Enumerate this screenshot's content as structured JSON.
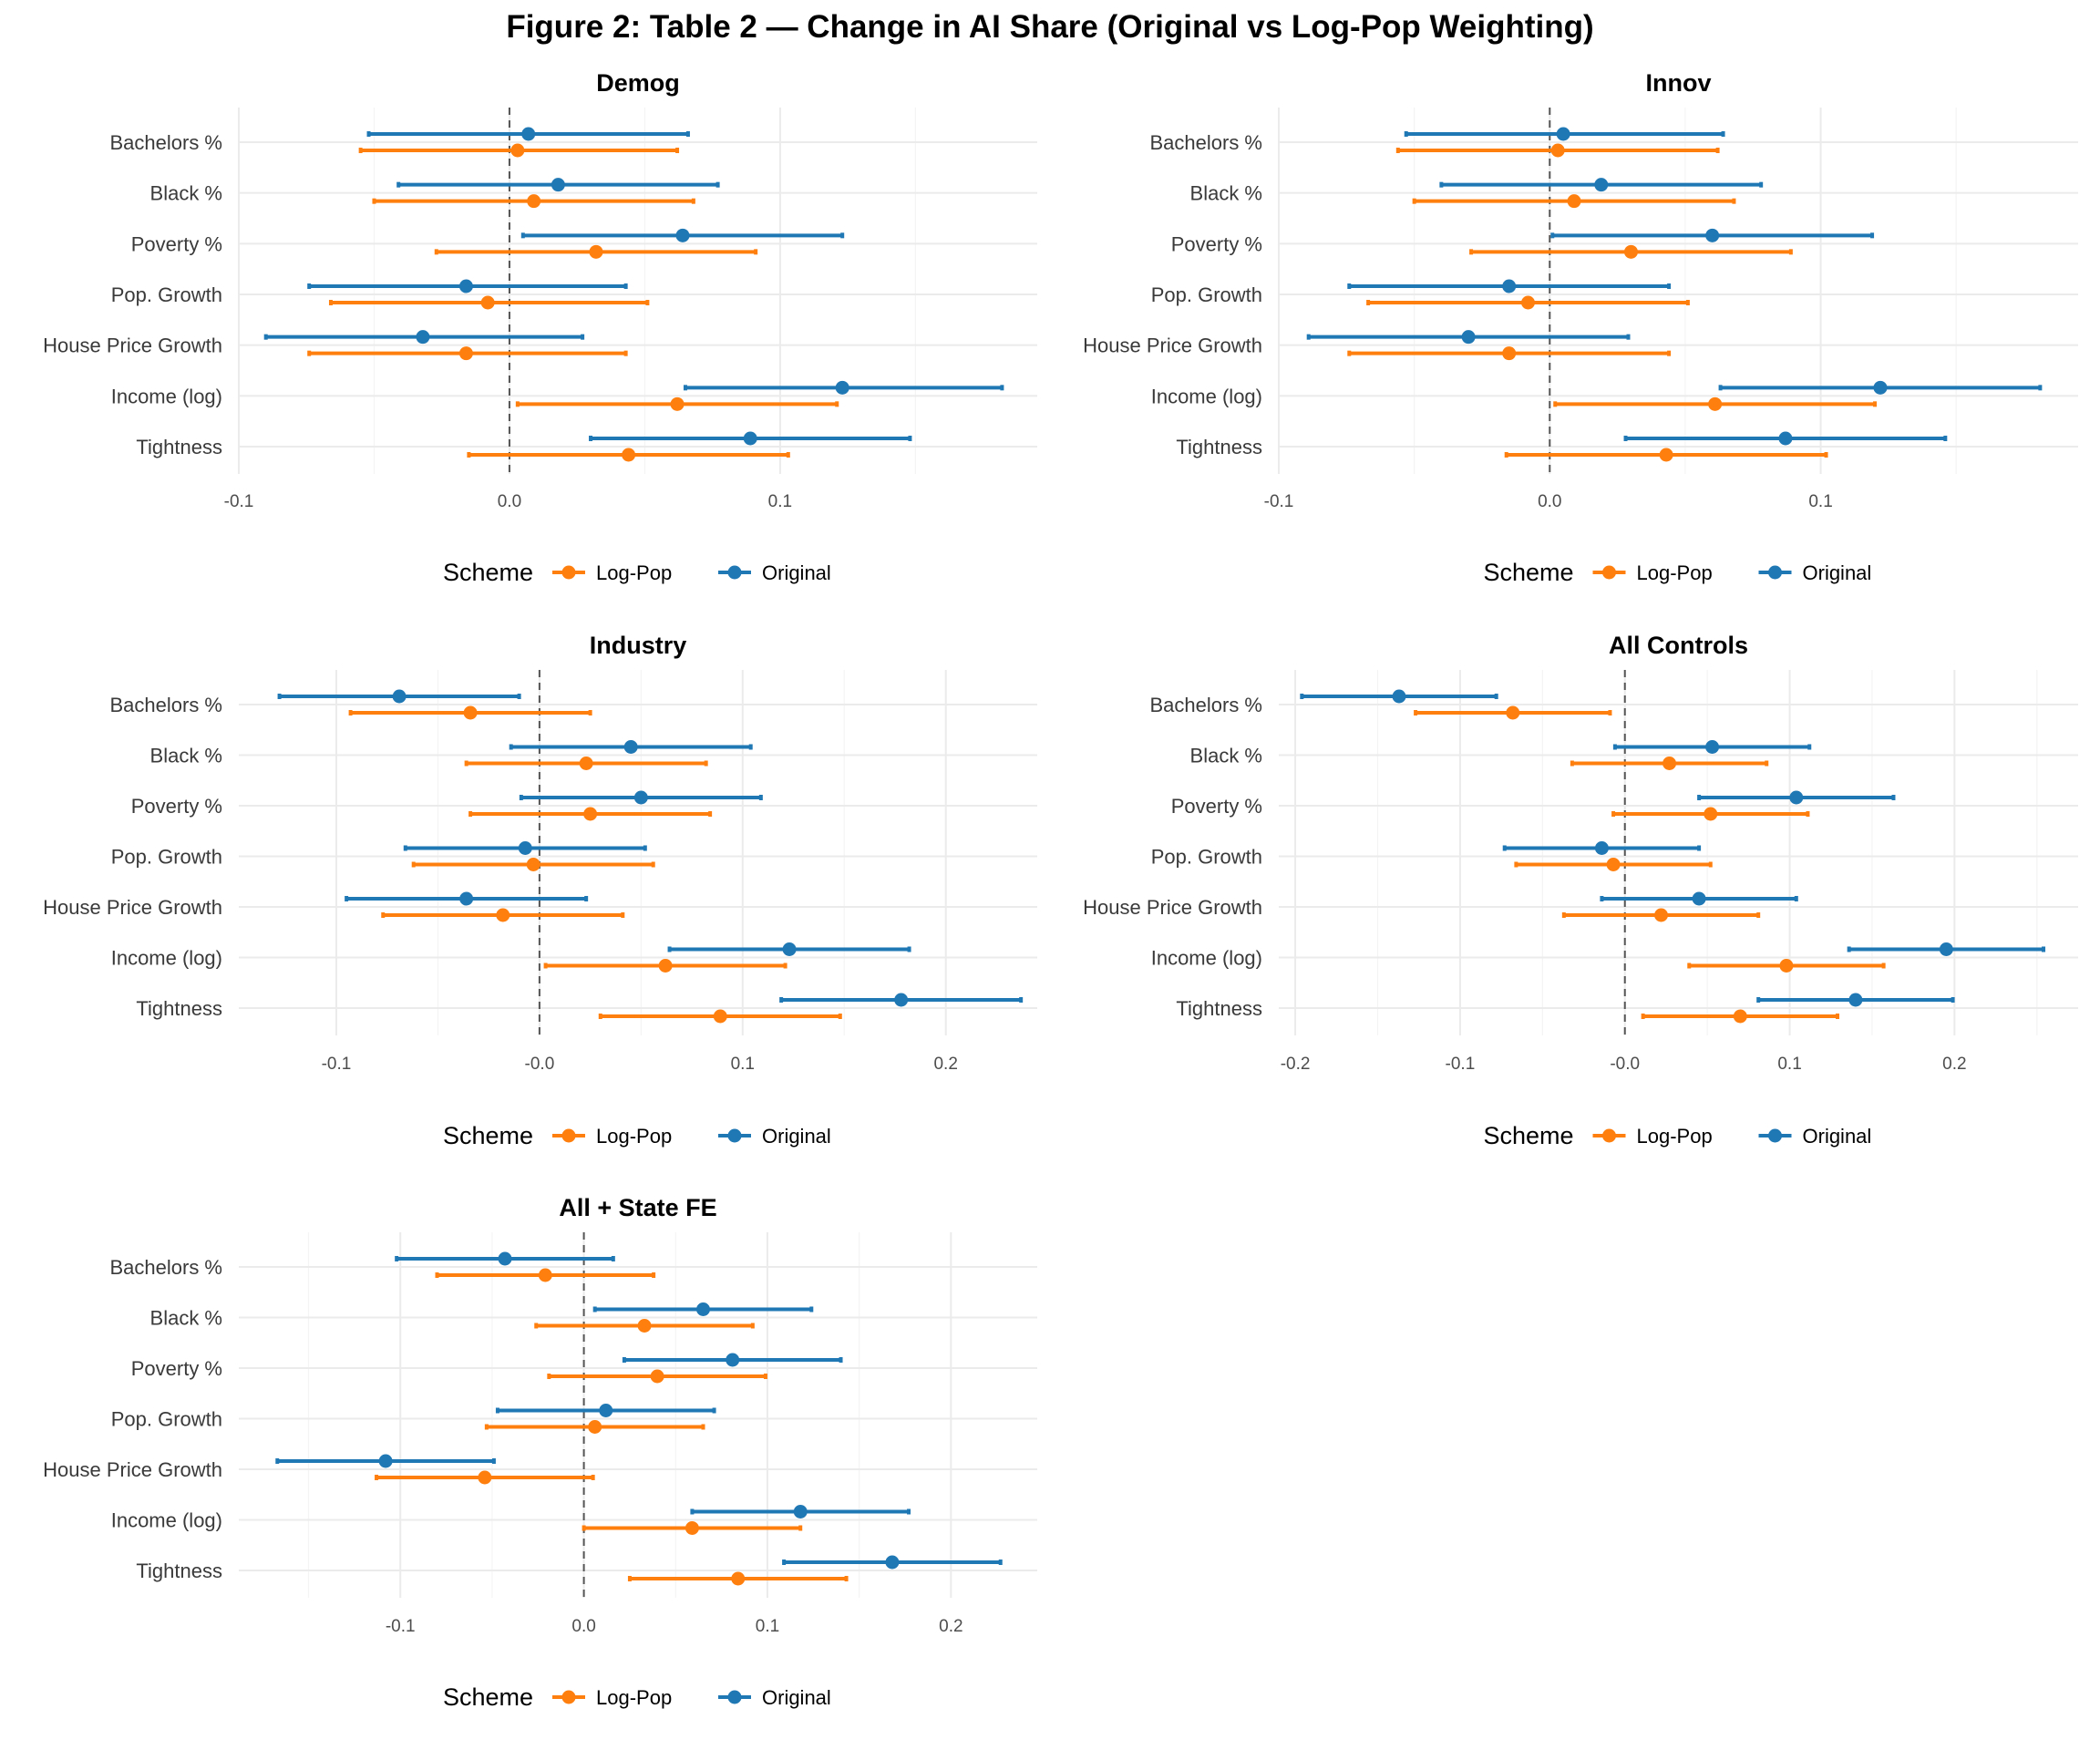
{
  "title": "Figure 2: Table 2 — Change in AI Share (Original vs Log-Pop Weighting)",
  "legend": {
    "title": "Scheme",
    "entries": [
      {
        "name": "Log-Pop",
        "color": "#ff7f0e"
      },
      {
        "name": "Original",
        "color": "#1f77b4"
      }
    ]
  },
  "chart_data": [
    {
      "type": "errorbar",
      "title": "Demog",
      "categories": [
        "Bachelors %",
        "Black %",
        "Poverty %",
        "Pop. Growth",
        "House Price Growth",
        "Income (log)",
        "Tightness"
      ],
      "xlim": [
        -0.1,
        0.195
      ],
      "xticks": [
        -0.1,
        0.0,
        0.1
      ],
      "xtick_labels": [
        "-0.1",
        "0.0",
        "0.1"
      ],
      "series": [
        {
          "name": "Original",
          "color": "#1f77b4",
          "estimate": [
            0.007,
            0.018,
            0.064,
            -0.016,
            -0.032,
            0.123,
            0.089
          ],
          "lower": [
            -0.052,
            -0.041,
            0.005,
            -0.074,
            -0.09,
            0.065,
            0.03
          ],
          "upper": [
            0.066,
            0.077,
            0.123,
            0.043,
            0.027,
            0.182,
            0.148
          ]
        },
        {
          "name": "Log-Pop",
          "color": "#ff7f0e",
          "estimate": [
            0.003,
            0.009,
            0.032,
            -0.008,
            -0.016,
            0.062,
            0.044
          ],
          "lower": [
            -0.055,
            -0.05,
            -0.027,
            -0.066,
            -0.074,
            0.003,
            -0.015
          ],
          "upper": [
            0.062,
            0.068,
            0.091,
            0.051,
            0.043,
            0.121,
            0.103
          ]
        }
      ]
    },
    {
      "type": "errorbar",
      "title": "Innov",
      "categories": [
        "Bachelors %",
        "Black %",
        "Poverty %",
        "Pop. Growth",
        "House Price Growth",
        "Income (log)",
        "Tightness"
      ],
      "xlim": [
        -0.1,
        0.195
      ],
      "xticks": [
        -0.1,
        0.0,
        0.1
      ],
      "xtick_labels": [
        "-0.1",
        "0.0",
        "0.1"
      ],
      "series": [
        {
          "name": "Original",
          "color": "#1f77b4",
          "estimate": [
            0.005,
            0.019,
            0.06,
            -0.015,
            -0.03,
            0.122,
            0.087
          ],
          "lower": [
            -0.053,
            -0.04,
            0.001,
            -0.074,
            -0.089,
            0.063,
            0.028
          ],
          "upper": [
            0.064,
            0.078,
            0.119,
            0.044,
            0.029,
            0.181,
            0.146
          ]
        },
        {
          "name": "Log-Pop",
          "color": "#ff7f0e",
          "estimate": [
            0.003,
            0.009,
            0.03,
            -0.008,
            -0.015,
            0.061,
            0.043
          ],
          "lower": [
            -0.056,
            -0.05,
            -0.029,
            -0.067,
            -0.074,
            0.002,
            -0.016
          ],
          "upper": [
            0.062,
            0.068,
            0.089,
            0.051,
            0.044,
            0.12,
            0.102
          ]
        }
      ]
    },
    {
      "type": "errorbar",
      "title": "Industry",
      "categories": [
        "Bachelors %",
        "Black %",
        "Poverty %",
        "Pop. Growth",
        "House Price Growth",
        "Income (log)",
        "Tightness"
      ],
      "xlim": [
        -0.148,
        0.245
      ],
      "xticks": [
        -0.1,
        0.0,
        0.1,
        0.2
      ],
      "xtick_labels": [
        "-0.1",
        "-0.0",
        "0.1",
        "0.2"
      ],
      "series": [
        {
          "name": "Original",
          "color": "#1f77b4",
          "estimate": [
            -0.069,
            0.045,
            0.05,
            -0.007,
            -0.036,
            0.123,
            0.178
          ],
          "lower": [
            -0.128,
            -0.014,
            -0.009,
            -0.066,
            -0.095,
            0.064,
            0.119
          ],
          "upper": [
            -0.01,
            0.104,
            0.109,
            0.052,
            0.023,
            0.182,
            0.237
          ]
        },
        {
          "name": "Log-Pop",
          "color": "#ff7f0e",
          "estimate": [
            -0.034,
            0.023,
            0.025,
            -0.003,
            -0.018,
            0.062,
            0.089
          ],
          "lower": [
            -0.093,
            -0.036,
            -0.034,
            -0.062,
            -0.077,
            0.003,
            0.03
          ],
          "upper": [
            0.025,
            0.082,
            0.084,
            0.056,
            0.041,
            0.121,
            0.148
          ]
        }
      ]
    },
    {
      "type": "errorbar",
      "title": "All Controls",
      "categories": [
        "Bachelors %",
        "Black %",
        "Poverty %",
        "Pop. Growth",
        "House Price Growth",
        "Income (log)",
        "Tightness"
      ],
      "xlim": [
        -0.21,
        0.275
      ],
      "xticks": [
        -0.2,
        -0.1,
        0.0,
        0.1,
        0.2
      ],
      "xtick_labels": [
        "-0.2",
        "-0.1",
        "-0.0",
        "0.1",
        "0.2"
      ],
      "series": [
        {
          "name": "Original",
          "color": "#1f77b4",
          "estimate": [
            -0.137,
            0.053,
            0.104,
            -0.014,
            0.045,
            0.195,
            0.14
          ],
          "lower": [
            -0.196,
            -0.006,
            0.045,
            -0.073,
            -0.014,
            0.136,
            0.081
          ],
          "upper": [
            -0.078,
            0.112,
            0.163,
            0.045,
            0.104,
            0.254,
            0.199
          ]
        },
        {
          "name": "Log-Pop",
          "color": "#ff7f0e",
          "estimate": [
            -0.068,
            0.027,
            0.052,
            -0.007,
            0.022,
            0.098,
            0.07
          ],
          "lower": [
            -0.127,
            -0.032,
            -0.007,
            -0.066,
            -0.037,
            0.039,
            0.011
          ],
          "upper": [
            -0.009,
            0.086,
            0.111,
            0.052,
            0.081,
            0.157,
            0.129
          ]
        }
      ]
    },
    {
      "type": "errorbar",
      "title": "All + State FE",
      "categories": [
        "Bachelors %",
        "Black %",
        "Poverty %",
        "Pop. Growth",
        "House Price Growth",
        "Income (log)",
        "Tightness"
      ],
      "xlim": [
        -0.188,
        0.247
      ],
      "xticks": [
        -0.1,
        0.0,
        0.1,
        0.2
      ],
      "xtick_labels": [
        "-0.1",
        "0.0",
        "0.1",
        "0.2"
      ],
      "series": [
        {
          "name": "Original",
          "color": "#1f77b4",
          "estimate": [
            -0.043,
            0.065,
            0.081,
            0.012,
            -0.108,
            0.118,
            0.168
          ],
          "lower": [
            -0.102,
            0.006,
            0.022,
            -0.047,
            -0.167,
            0.059,
            0.109
          ],
          "upper": [
            0.016,
            0.124,
            0.14,
            0.071,
            -0.049,
            0.177,
            0.227
          ]
        },
        {
          "name": "Log-Pop",
          "color": "#ff7f0e",
          "estimate": [
            -0.021,
            0.033,
            0.04,
            0.006,
            -0.054,
            0.059,
            0.084
          ],
          "lower": [
            -0.08,
            -0.026,
            -0.019,
            -0.053,
            -0.113,
            0.0,
            0.025
          ],
          "upper": [
            0.038,
            0.092,
            0.099,
            0.065,
            0.005,
            0.118,
            0.143
          ]
        }
      ]
    }
  ]
}
